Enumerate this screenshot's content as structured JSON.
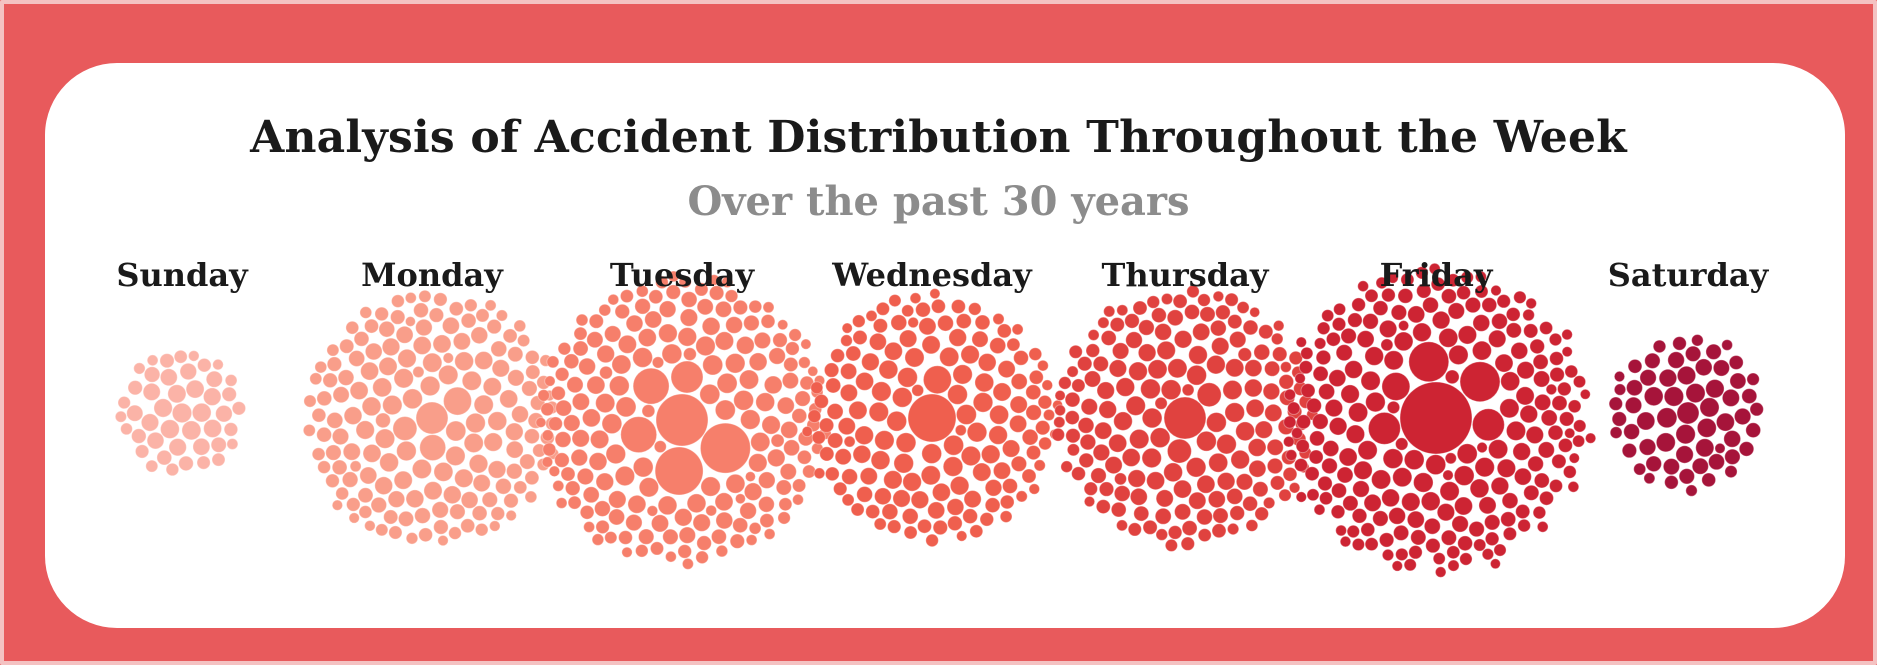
{
  "title": "Analysis of Accident Distribution Throughout the Week",
  "subtitle": "Over the past 30 years",
  "chart_data": {
    "type": "packed-bubble",
    "title": "Analysis of Accident Distribution Throughout the Week",
    "subtitle": "Over the past 30 years",
    "groups": [
      {
        "label": "Sunday",
        "color": "#fbb3a7",
        "bubbles": 45,
        "big": []
      },
      {
        "label": "Monday",
        "color": "#f99e8a",
        "bubbles": 160,
        "big": [
          16,
          14,
          13,
          12
        ]
      },
      {
        "label": "Tuesday",
        "color": "#f67f6b",
        "bubbles": 190,
        "big": [
          26,
          25,
          24,
          18,
          18,
          16
        ]
      },
      {
        "label": "Wednesday",
        "color": "#ef5f4e",
        "bubbles": 150,
        "big": [
          24,
          14
        ]
      },
      {
        "label": "Thursday",
        "color": "#e0423f",
        "bubbles": 170,
        "big": [
          21,
          12,
          12
        ]
      },
      {
        "label": "Friday",
        "color": "#cd2433",
        "bubbles": 220,
        "big": [
          36,
          20,
          20,
          16,
          16,
          14
        ]
      },
      {
        "label": "Saturday",
        "color": "#a6143a",
        "bubbles": 60,
        "big": [
          11
        ]
      }
    ],
    "legend": "none",
    "grid": false
  },
  "colors": {
    "background": "#e85a5c",
    "card": "#ffffff",
    "title": "#1a1a1a",
    "subtitle": "#8c8c8c"
  }
}
